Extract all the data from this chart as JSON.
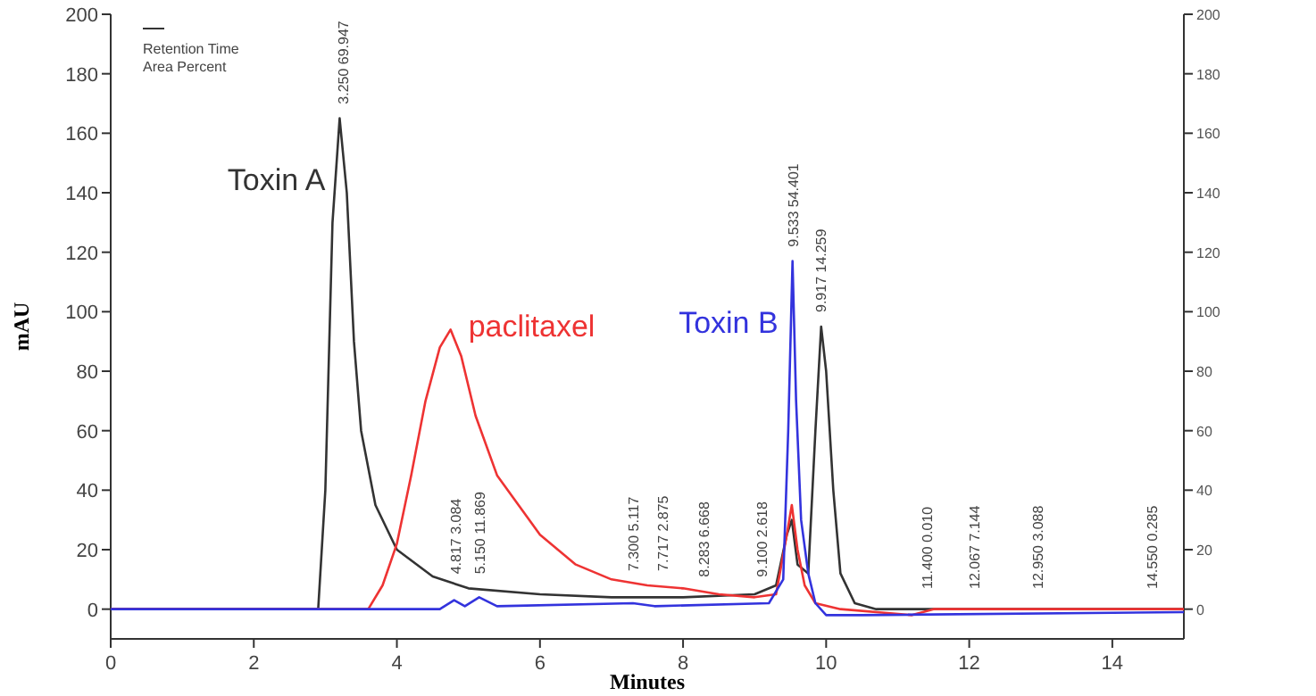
{
  "chart_data": {
    "type": "line",
    "xlabel": "Minutes",
    "ylabel": "mAU",
    "xlim": [
      0,
      15
    ],
    "xticks": [
      0,
      2,
      4,
      6,
      8,
      10,
      12,
      14
    ],
    "ylim": [
      -10,
      200
    ],
    "yticks": [
      0,
      20,
      40,
      60,
      80,
      100,
      120,
      140,
      160,
      180,
      200
    ],
    "y2lim": [
      -10,
      200
    ],
    "y2ticks": [
      0,
      20,
      40,
      60,
      80,
      100,
      120,
      140,
      160,
      180,
      200
    ],
    "legend": false,
    "grid": false,
    "series": [
      {
        "name": "Toxin A",
        "color": "#333333",
        "x": [
          0,
          2.9,
          3.0,
          3.1,
          3.2,
          3.3,
          3.4,
          3.5,
          3.7,
          4.0,
          4.5,
          5.0,
          6.0,
          7.0,
          8.0,
          9.0,
          9.3,
          9.45,
          9.52,
          9.6,
          9.75,
          9.85,
          9.93,
          10.0,
          10.1,
          10.2,
          10.4,
          10.7,
          11,
          15
        ],
        "values": [
          0,
          0,
          40,
          130,
          165,
          140,
          90,
          60,
          35,
          20,
          11,
          7,
          5,
          4,
          4,
          5,
          8,
          25,
          30,
          15,
          12,
          60,
          95,
          80,
          40,
          12,
          2,
          0,
          0,
          0
        ]
      },
      {
        "name": "paclitaxel",
        "color": "#ee3333",
        "x": [
          0,
          3.6,
          3.8,
          4.0,
          4.2,
          4.4,
          4.6,
          4.75,
          4.9,
          5.1,
          5.4,
          5.7,
          6.0,
          6.5,
          7.0,
          7.5,
          8.0,
          8.5,
          9.0,
          9.3,
          9.45,
          9.52,
          9.6,
          9.7,
          9.85,
          10.2,
          11.2,
          11.5,
          15
        ],
        "values": [
          0,
          0,
          8,
          22,
          45,
          70,
          88,
          94,
          85,
          65,
          45,
          35,
          25,
          15,
          10,
          8,
          7,
          5,
          4,
          5,
          25,
          35,
          20,
          8,
          2,
          0,
          -2,
          0,
          0
        ]
      },
      {
        "name": "Toxin B",
        "color": "#3333dd",
        "x": [
          0,
          4.6,
          4.8,
          4.95,
          5.15,
          5.4,
          7.3,
          7.6,
          9.2,
          9.4,
          9.47,
          9.53,
          9.58,
          9.65,
          9.75,
          9.85,
          10.0,
          10.5,
          15
        ],
        "values": [
          0,
          0,
          3,
          1,
          4,
          1,
          2,
          1,
          2,
          10,
          60,
          117,
          70,
          30,
          12,
          2,
          -2,
          -2,
          -1
        ]
      }
    ],
    "annotations": [
      "Retention Time",
      "Area Percent",
      {
        "text": "3.250 69.947",
        "x": 3.25,
        "y": 165
      },
      {
        "text": "4.817 3.084",
        "x": 4.817,
        "y": 7
      },
      {
        "text": "5.150 11.869",
        "x": 5.15,
        "y": 7
      },
      {
        "text": "7.300 5.117",
        "x": 7.3,
        "y": 8
      },
      {
        "text": "7.717 2.875",
        "x": 7.717,
        "y": 8
      },
      {
        "text": "8.283 6.668",
        "x": 8.283,
        "y": 6
      },
      {
        "text": "9.100 2.618",
        "x": 9.1,
        "y": 6
      },
      {
        "text": "9.533 54.401",
        "x": 9.533,
        "y": 117
      },
      {
        "text": "9.917 14.259",
        "x": 9.917,
        "y": 95
      },
      {
        "text": "11.400 0.010",
        "x": 11.4,
        "y": 2
      },
      {
        "text": "12.067 7.144",
        "x": 12.067,
        "y": 2
      },
      {
        "text": "12.950 3.088",
        "x": 12.95,
        "y": 2
      },
      {
        "text": "14.550 0.285",
        "x": 14.55,
        "y": 2
      }
    ]
  }
}
